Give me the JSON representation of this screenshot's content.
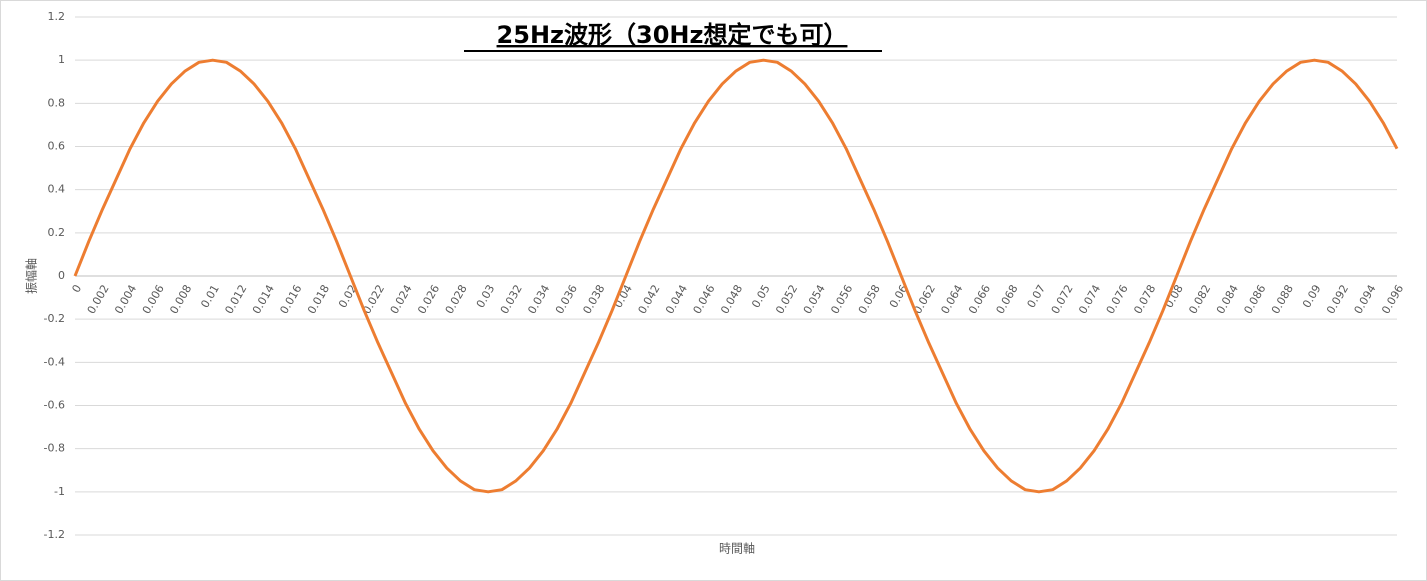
{
  "chart_data": {
    "type": "line",
    "title": "25Hz波形（30Hz想定でも可）",
    "x_label": "時間軸",
    "y_label": "振幅軸",
    "color": "#ed7d31",
    "grid": true,
    "categories": [
      0,
      null,
      0.002,
      null,
      0.004,
      null,
      0.006,
      null,
      0.008,
      null,
      0.01,
      null,
      0.012,
      null,
      0.014,
      null,
      0.016,
      null,
      0.018,
      null,
      0.02,
      null,
      0.022,
      null,
      0.024,
      null,
      0.026,
      null,
      0.028,
      null,
      0.03,
      null,
      0.032,
      null,
      0.034,
      null,
      0.036,
      null,
      0.038,
      null,
      0.04,
      null,
      0.042,
      null,
      0.044,
      null,
      0.046,
      null,
      0.048,
      null,
      0.05,
      null,
      0.052,
      null,
      0.054,
      null,
      0.056,
      null,
      0.058,
      null,
      0.06,
      null,
      0.062,
      null,
      0.064,
      null,
      0.066,
      null,
      0.068,
      null,
      0.07,
      null,
      0.072,
      null,
      0.074,
      null,
      0.076,
      null,
      0.078,
      null,
      0.08,
      null,
      0.082,
      null,
      0.084,
      null,
      0.086,
      null,
      0.088,
      null,
      0.09,
      null,
      0.092,
      null,
      0.094,
      null,
      0.096
    ],
    "values": [
      0,
      0.16,
      0.31,
      0.45,
      0.59,
      0.71,
      0.81,
      0.89,
      0.95,
      0.99,
      1,
      0.99,
      0.95,
      0.89,
      0.81,
      0.71,
      0.59,
      0.45,
      0.31,
      0.16,
      0,
      -0.16,
      -0.31,
      -0.45,
      -0.59,
      -0.71,
      -0.81,
      -0.89,
      -0.95,
      -0.99,
      -1,
      -0.99,
      -0.95,
      -0.89,
      -0.81,
      -0.71,
      -0.59,
      -0.45,
      -0.31,
      -0.16,
      0,
      0.16,
      0.31,
      0.45,
      0.59,
      0.71,
      0.81,
      0.89,
      0.95,
      0.99,
      1,
      0.99,
      0.95,
      0.89,
      0.81,
      0.71,
      0.59,
      0.45,
      0.31,
      0.16,
      0,
      -0.16,
      -0.31,
      -0.45,
      -0.59,
      -0.71,
      -0.81,
      -0.89,
      -0.95,
      -0.99,
      -1,
      -0.99,
      -0.95,
      -0.89,
      -0.81,
      -0.71,
      -0.59,
      -0.45,
      -0.31,
      -0.16,
      0,
      0.16,
      0.31,
      0.45,
      0.59,
      0.71,
      0.81,
      0.89,
      0.95,
      0.99,
      1,
      0.99,
      0.95,
      0.89,
      0.81,
      0.71,
      0.59
    ],
    "ylim": [
      -1.2,
      1.2
    ],
    "yticks": [
      -1.2,
      -1,
      -0.8,
      -0.6,
      -0.4,
      -0.2,
      0,
      0.2,
      0.4,
      0.6,
      0.8,
      1,
      1.2
    ]
  }
}
